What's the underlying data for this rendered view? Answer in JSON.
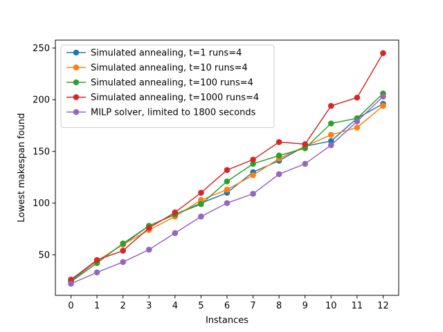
{
  "chart_data": {
    "type": "line",
    "title": "",
    "xlabel": "Instances",
    "ylabel": "Lowest makespan found",
    "x": [
      0,
      1,
      2,
      3,
      4,
      5,
      6,
      7,
      8,
      9,
      10,
      11,
      12
    ],
    "xticks": [
      "0",
      "1",
      "2",
      "3",
      "4",
      "5",
      "6",
      "7",
      "8",
      "9",
      "10",
      "11",
      "12"
    ],
    "yticks": [
      50,
      100,
      150,
      200,
      250
    ],
    "xlim": [
      -0.6,
      12.6
    ],
    "ylim": [
      10.8,
      257.6
    ],
    "grid": false,
    "legend_position": "upper-left",
    "series": [
      {
        "name": "Simulated annealing, t=1 runs=4",
        "color": "#1f77b4",
        "values": [
          25,
          44,
          60,
          78,
          89,
          100,
          110,
          130,
          141,
          155,
          160,
          182,
          196
        ]
      },
      {
        "name": "Simulated annealing, t=10 runs=4",
        "color": "#ff7f0e",
        "values": [
          26,
          44,
          60,
          74,
          87,
          103,
          113,
          127,
          143,
          155,
          166,
          173,
          194
        ]
      },
      {
        "name": "Simulated annealing, t=100 runs=4",
        "color": "#2ca02c",
        "values": [
          24,
          42,
          61,
          78,
          89,
          99,
          121,
          138,
          146,
          153,
          177,
          182,
          206
        ]
      },
      {
        "name": "Simulated annealing, t=1000 runs=4",
        "color": "#d62728",
        "values": [
          26,
          45,
          54,
          76,
          91,
          110,
          132,
          142,
          159,
          157,
          194,
          202,
          245
        ]
      },
      {
        "name": "MILP solver, limited to 1800 seconds",
        "color": "#9467bd",
        "values": [
          22,
          33,
          43,
          55,
          71,
          87,
          100,
          109,
          128,
          138,
          156,
          179,
          203
        ]
      }
    ]
  }
}
